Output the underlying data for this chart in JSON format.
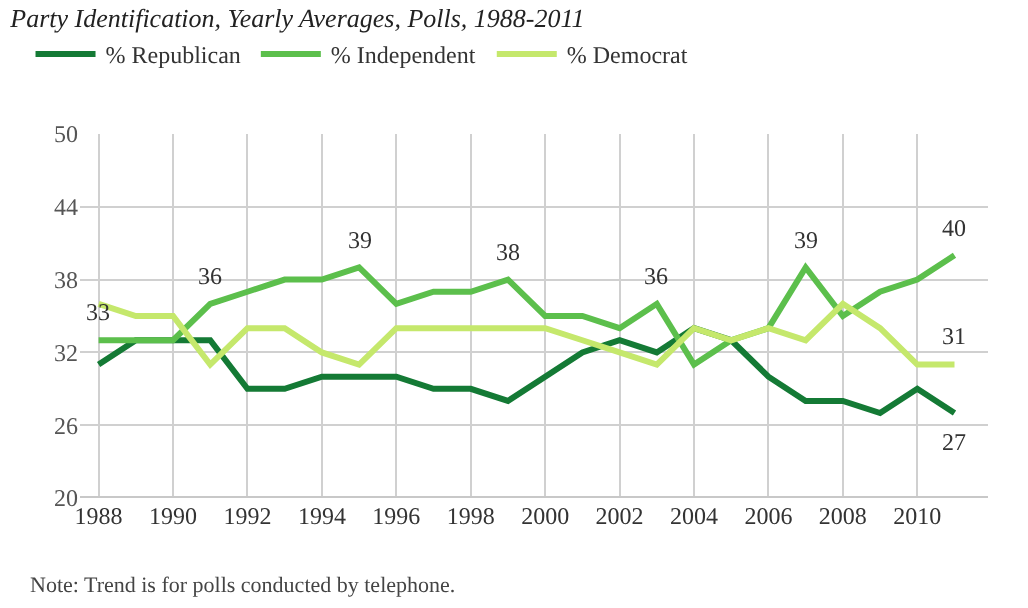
{
  "chart_data": {
    "type": "line",
    "title": "Party Identification, Yearly Averages, Polls, 1988-2011",
    "x": [
      1988,
      1989,
      1990,
      1991,
      1992,
      1993,
      1994,
      1995,
      1996,
      1997,
      1998,
      1999,
      2000,
      2001,
      2002,
      2003,
      2004,
      2005,
      2006,
      2007,
      2008,
      2009,
      2010,
      2011
    ],
    "series": [
      {
        "name": "% Republican",
        "color": "#147a35",
        "values": [
          31,
          33,
          33,
          33,
          29,
          29,
          30,
          30,
          30,
          29,
          29,
          28,
          30,
          32,
          33,
          32,
          34,
          33,
          30,
          28,
          28,
          27,
          29,
          27
        ],
        "value_labels": [
          null,
          null,
          null,
          null,
          null,
          null,
          null,
          null,
          null,
          null,
          null,
          null,
          null,
          null,
          null,
          null,
          null,
          null,
          null,
          null,
          null,
          null,
          null,
          "27"
        ]
      },
      {
        "name": "% Independent",
        "color": "#5cbf4c",
        "values": [
          33,
          33,
          33,
          36,
          37,
          38,
          38,
          39,
          36,
          37,
          37,
          38,
          35,
          35,
          34,
          36,
          31,
          33,
          34,
          39,
          35,
          37,
          38,
          40
        ],
        "value_labels": [
          "33",
          null,
          null,
          "36",
          null,
          null,
          null,
          "39",
          null,
          null,
          null,
          "38",
          null,
          null,
          null,
          "36",
          null,
          null,
          null,
          "39",
          null,
          null,
          null,
          "40"
        ]
      },
      {
        "name": "% Democrat",
        "color": "#c5e86c",
        "values": [
          36,
          35,
          35,
          31,
          34,
          34,
          32,
          31,
          34,
          34,
          34,
          34,
          34,
          33,
          32,
          31,
          34,
          33,
          34,
          33,
          36,
          34,
          31,
          31
        ],
        "value_labels": [
          null,
          null,
          null,
          null,
          null,
          null,
          null,
          null,
          null,
          null,
          null,
          null,
          null,
          null,
          null,
          null,
          null,
          null,
          null,
          null,
          null,
          null,
          null,
          "31"
        ]
      }
    ],
    "xlim": [
      1987.5,
      2011.9
    ],
    "xticks": [
      1988,
      1990,
      1992,
      1994,
      1996,
      1998,
      2000,
      2002,
      2004,
      2006,
      2008,
      2010
    ],
    "ylim": [
      20,
      50
    ],
    "yticks": [
      20,
      26,
      32,
      38,
      44,
      50
    ],
    "grid": true,
    "legend": "top left",
    "marker": "none",
    "line_style": "solid",
    "annotations": [
      "Note: Trend is for polls conducted by telephone."
    ]
  }
}
